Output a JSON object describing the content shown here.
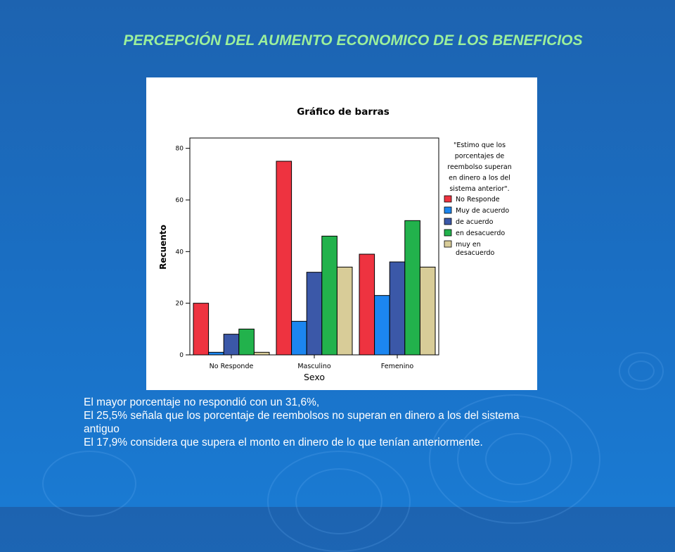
{
  "slide": {
    "title": "PERCEPCIÓN DEL AUMENTO ECONOMICO DE LOS BENEFICIOS",
    "background_color": "#1a6fc4",
    "title_color": "#9cf09c"
  },
  "chart_data": {
    "type": "bar",
    "title": "Gráfico de barras",
    "xlabel": "Sexo",
    "ylabel": "Recuento",
    "ylim": [
      0,
      84
    ],
    "yticks": [
      0,
      20,
      40,
      60,
      80
    ],
    "grid": false,
    "legend_position": "right",
    "legend_title": [
      "\"Estimo que los",
      "porcentajes de",
      "reembolso superan",
      "en dinero a los del",
      "sistema anterior\"."
    ],
    "categories": [
      "No Responde",
      "Masculino",
      "Femenino"
    ],
    "series": [
      {
        "name": "No Responde",
        "color": "#ee3340",
        "values": [
          20,
          75,
          39
        ]
      },
      {
        "name": "Muy de acuerdo",
        "color": "#1c86f0",
        "values": [
          1,
          13,
          23
        ]
      },
      {
        "name": "de acuerdo",
        "color": "#3b58a8",
        "values": [
          8,
          32,
          36
        ]
      },
      {
        "name": "en desacuerdo",
        "color": "#22b24c",
        "values": [
          10,
          46,
          52
        ]
      },
      {
        "name": "muy en desacuerdo",
        "legend_lines": [
          "muy en",
          "desacuerdo"
        ],
        "color": "#d8cc98",
        "values": [
          1,
          34,
          34
        ]
      }
    ]
  },
  "caption": {
    "lines": [
      "El mayor porcentaje no respondió con un 31,6%,",
      "El 25,5% señala que los porcentaje de reembolsos no superan en dinero a los del sistema",
      "antiguo",
      "El 17,9% considera que supera el monto en dinero de lo que tenían anteriormente."
    ]
  }
}
